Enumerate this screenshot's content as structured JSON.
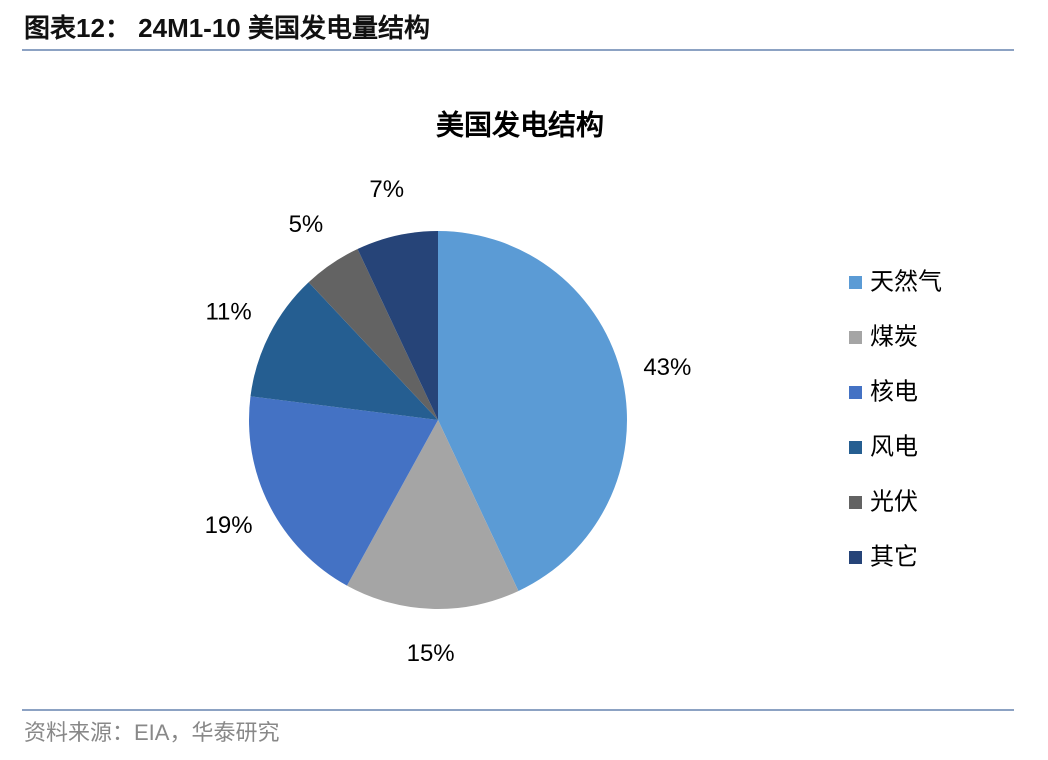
{
  "header": {
    "title": "图表12： 24M1-10 美国发电量结构"
  },
  "chart_data": {
    "type": "pie",
    "title": "美国发电结构",
    "categories": [
      "天然气",
      "煤炭",
      "核电",
      "风电",
      "光伏",
      "其它"
    ],
    "values": [
      43,
      15,
      19,
      11,
      5,
      7
    ],
    "value_labels": [
      "43%",
      "15%",
      "19%",
      "11%",
      "5%",
      "7%"
    ],
    "colors": [
      "#5b9bd5",
      "#a5a5a5",
      "#4472c4",
      "#255e91",
      "#636363",
      "#264478"
    ],
    "legend": "right"
  },
  "footer": {
    "source": "资料来源：EIA，华泰研究"
  }
}
